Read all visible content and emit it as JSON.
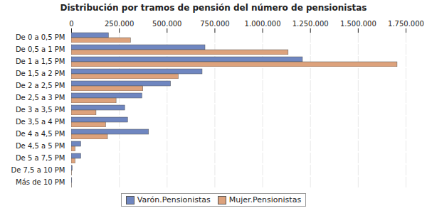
{
  "chart_data": {
    "type": "bar",
    "orientation": "horizontal",
    "title": "Distribución por tramos de pensión del número de pensionistas",
    "categories": [
      "De 0 a 0,5 PM",
      "De 0,5 a 1 PM",
      "De 1 a 1,5 PM",
      "De 1,5 a 2 PM",
      "De 2 a 2,5 PM",
      "De 2,5 a 3 PM",
      "De 3 a 3,5 PM",
      "De 3,5 a 4 PM",
      "De 4 a 4,5 PM",
      "De 4,5 a 5 PM",
      "De 5 a 7,5 PM",
      "De 7,5 a 10 PM",
      "Más de 10 PM"
    ],
    "series": [
      {
        "name": "Varón.Pensionistas",
        "color": "#6f86c0",
        "values": [
          195000,
          700000,
          1210000,
          685000,
          520000,
          370000,
          280000,
          295000,
          405000,
          50000,
          50000,
          5000,
          3000
        ]
      },
      {
        "name": "Mujer.Pensionistas",
        "color": "#dda27c",
        "values": [
          310000,
          1135000,
          1705000,
          560000,
          375000,
          235000,
          130000,
          180000,
          190000,
          20000,
          20000,
          2000,
          1000
        ]
      }
    ],
    "xlim": [
      0,
      1750000
    ],
    "xticks": [
      0,
      {
        "value": 250000,
        "label": "250.000"
      },
      {
        "value": 500000,
        "label": "500.000"
      },
      {
        "value": 750000,
        "label": "750.000"
      },
      {
        "value": 1000000,
        "label": "1.000.000"
      },
      {
        "value": 1250000,
        "label": "1.250.000"
      },
      {
        "value": 1500000,
        "label": "1.500.000"
      },
      {
        "value": 1750000,
        "label": "1.750.000"
      }
    ],
    "grid": true,
    "legend": "bottom"
  }
}
